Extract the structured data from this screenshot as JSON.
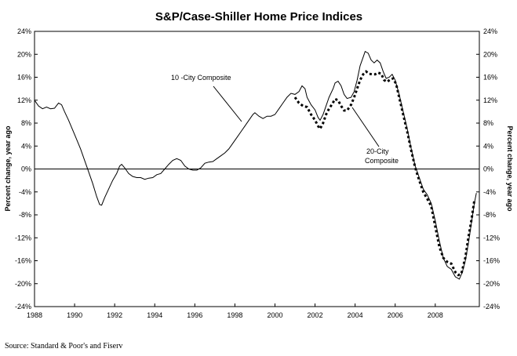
{
  "source": "Source: Standard & Poor's and Fiserv",
  "chart_data": {
    "type": "line",
    "title": "S&P/Case-Shiller Home Price Indices",
    "ylabel_left": "Percent change, year ago",
    "ylabel_right": "Percent change, year ago",
    "xlabel": "",
    "ylim": [
      -24,
      24
    ],
    "xlim": [
      1988,
      2010.2
    ],
    "y_ticks": [
      "24%",
      "20%",
      "16%",
      "12%",
      "8%",
      "4%",
      "0%",
      "-4%",
      "-8%",
      "-12%",
      "-16%",
      "-20%",
      "-24%"
    ],
    "y_tick_values": [
      24,
      20,
      16,
      12,
      8,
      4,
      0,
      -4,
      -8,
      -12,
      -16,
      -20,
      -24
    ],
    "x_ticks": [
      "1988",
      "1990",
      "1992",
      "1994",
      "1996",
      "1998",
      "2000",
      "2002",
      "2004",
      "2006",
      "2008"
    ],
    "x_tick_values": [
      1988,
      1990,
      1992,
      1994,
      1996,
      1998,
      2000,
      2002,
      2004,
      2006,
      2008
    ],
    "zero_line": true,
    "grid": false,
    "annotations": [
      {
        "text": "10 -City Composite",
        "series": 0
      },
      {
        "text": "20-City",
        "series": 1
      },
      {
        "text": "Composite",
        "series": 1
      }
    ],
    "series": [
      {
        "name": "10 -City Composite",
        "style": "solid",
        "color": "#000000",
        "points": [
          [
            1988.0,
            12.0
          ],
          [
            1988.2,
            11.0
          ],
          [
            1988.4,
            10.5
          ],
          [
            1988.6,
            10.8
          ],
          [
            1988.8,
            10.5
          ],
          [
            1989.0,
            10.6
          ],
          [
            1989.2,
            11.5
          ],
          [
            1989.35,
            11.2
          ],
          [
            1989.5,
            10.0
          ],
          [
            1989.7,
            8.5
          ],
          [
            1990.0,
            6.0
          ],
          [
            1990.3,
            3.5
          ],
          [
            1990.6,
            0.5
          ],
          [
            1990.9,
            -2.5
          ],
          [
            1991.1,
            -4.8
          ],
          [
            1991.25,
            -6.2
          ],
          [
            1991.35,
            -6.3
          ],
          [
            1991.5,
            -5.0
          ],
          [
            1991.7,
            -3.5
          ],
          [
            1991.9,
            -2.0
          ],
          [
            1992.1,
            -0.8
          ],
          [
            1992.25,
            0.5
          ],
          [
            1992.35,
            0.8
          ],
          [
            1992.5,
            0.2
          ],
          [
            1992.7,
            -0.8
          ],
          [
            1992.9,
            -1.3
          ],
          [
            1993.1,
            -1.5
          ],
          [
            1993.3,
            -1.5
          ],
          [
            1993.5,
            -1.8
          ],
          [
            1993.7,
            -1.6
          ],
          [
            1993.9,
            -1.5
          ],
          [
            1994.1,
            -1.0
          ],
          [
            1994.3,
            -0.8
          ],
          [
            1994.5,
            0.0
          ],
          [
            1994.7,
            0.8
          ],
          [
            1994.9,
            1.5
          ],
          [
            1995.1,
            1.8
          ],
          [
            1995.3,
            1.5
          ],
          [
            1995.5,
            0.5
          ],
          [
            1995.7,
            0.0
          ],
          [
            1995.9,
            -0.2
          ],
          [
            1996.1,
            -0.2
          ],
          [
            1996.3,
            0.2
          ],
          [
            1996.5,
            1.0
          ],
          [
            1996.7,
            1.2
          ],
          [
            1996.9,
            1.3
          ],
          [
            1997.1,
            1.8
          ],
          [
            1997.3,
            2.3
          ],
          [
            1997.5,
            2.8
          ],
          [
            1997.7,
            3.5
          ],
          [
            1997.9,
            4.5
          ],
          [
            1998.1,
            5.5
          ],
          [
            1998.3,
            6.5
          ],
          [
            1998.5,
            7.5
          ],
          [
            1998.7,
            8.5
          ],
          [
            1998.9,
            9.5
          ],
          [
            1999.0,
            9.8
          ],
          [
            1999.2,
            9.2
          ],
          [
            1999.4,
            8.8
          ],
          [
            1999.6,
            9.2
          ],
          [
            1999.8,
            9.2
          ],
          [
            2000.0,
            9.5
          ],
          [
            2000.2,
            10.5
          ],
          [
            2000.4,
            11.5
          ],
          [
            2000.6,
            12.5
          ],
          [
            2000.8,
            13.2
          ],
          [
            2001.0,
            13.0
          ],
          [
            2001.2,
            13.5
          ],
          [
            2001.35,
            14.5
          ],
          [
            2001.5,
            14.0
          ],
          [
            2001.6,
            12.5
          ],
          [
            2001.8,
            11.2
          ],
          [
            2002.0,
            10.3
          ],
          [
            2002.15,
            9.0
          ],
          [
            2002.25,
            8.5
          ],
          [
            2002.4,
            9.5
          ],
          [
            2002.55,
            11.0
          ],
          [
            2002.7,
            12.5
          ],
          [
            2002.9,
            14.0
          ],
          [
            2003.0,
            15.0
          ],
          [
            2003.15,
            15.3
          ],
          [
            2003.3,
            14.5
          ],
          [
            2003.45,
            13.0
          ],
          [
            2003.6,
            12.3
          ],
          [
            2003.8,
            12.5
          ],
          [
            2003.95,
            13.5
          ],
          [
            2004.1,
            15.5
          ],
          [
            2004.25,
            18.0
          ],
          [
            2004.4,
            19.5
          ],
          [
            2004.5,
            20.5
          ],
          [
            2004.65,
            20.2
          ],
          [
            2004.8,
            19.0
          ],
          [
            2004.95,
            18.5
          ],
          [
            2005.1,
            19.0
          ],
          [
            2005.25,
            18.5
          ],
          [
            2005.4,
            17.0
          ],
          [
            2005.55,
            15.8
          ],
          [
            2005.7,
            16.0
          ],
          [
            2005.85,
            16.5
          ],
          [
            2006.0,
            15.5
          ],
          [
            2006.2,
            13.0
          ],
          [
            2006.4,
            10.0
          ],
          [
            2006.6,
            7.0
          ],
          [
            2006.8,
            3.5
          ],
          [
            2007.0,
            0.5
          ],
          [
            2007.2,
            -1.5
          ],
          [
            2007.4,
            -3.5
          ],
          [
            2007.6,
            -4.5
          ],
          [
            2007.8,
            -6.0
          ],
          [
            2008.0,
            -9.0
          ],
          [
            2008.2,
            -12.5
          ],
          [
            2008.4,
            -15.5
          ],
          [
            2008.6,
            -17.0
          ],
          [
            2008.8,
            -17.5
          ],
          [
            2009.0,
            -18.8
          ],
          [
            2009.2,
            -19.2
          ],
          [
            2009.35,
            -18.0
          ],
          [
            2009.5,
            -16.0
          ],
          [
            2009.65,
            -13.0
          ],
          [
            2009.8,
            -9.5
          ],
          [
            2009.95,
            -6.0
          ],
          [
            2010.05,
            -4.2
          ]
        ]
      },
      {
        "name": "20-City Composite",
        "style": "dashed",
        "color": "#000000",
        "points": [
          [
            2001.0,
            12.5
          ],
          [
            2001.2,
            11.5
          ],
          [
            2001.4,
            11.0
          ],
          [
            2001.6,
            10.8
          ],
          [
            2001.8,
            9.5
          ],
          [
            2002.0,
            8.5
          ],
          [
            2002.15,
            7.5
          ],
          [
            2002.25,
            7.0
          ],
          [
            2002.4,
            8.0
          ],
          [
            2002.55,
            9.5
          ],
          [
            2002.7,
            10.5
          ],
          [
            2002.85,
            11.3
          ],
          [
            2003.0,
            12.2
          ],
          [
            2003.15,
            12.0
          ],
          [
            2003.3,
            11.0
          ],
          [
            2003.45,
            10.2
          ],
          [
            2003.6,
            10.2
          ],
          [
            2003.8,
            11.2
          ],
          [
            2003.95,
            12.5
          ],
          [
            2004.1,
            14.0
          ],
          [
            2004.25,
            15.5
          ],
          [
            2004.4,
            16.5
          ],
          [
            2004.55,
            17.0
          ],
          [
            2004.7,
            16.6
          ],
          [
            2004.85,
            16.5
          ],
          [
            2005.0,
            16.5
          ],
          [
            2005.15,
            16.8
          ],
          [
            2005.3,
            16.6
          ],
          [
            2005.45,
            15.5
          ],
          [
            2005.6,
            15.2
          ],
          [
            2005.75,
            15.6
          ],
          [
            2005.9,
            15.8
          ],
          [
            2006.05,
            14.8
          ],
          [
            2006.2,
            12.5
          ],
          [
            2006.4,
            9.5
          ],
          [
            2006.6,
            6.5
          ],
          [
            2006.8,
            3.2
          ],
          [
            2007.0,
            0.2
          ],
          [
            2007.2,
            -2.0
          ],
          [
            2007.4,
            -4.0
          ],
          [
            2007.6,
            -5.2
          ],
          [
            2007.8,
            -6.5
          ],
          [
            2008.0,
            -10.0
          ],
          [
            2008.2,
            -13.5
          ],
          [
            2008.4,
            -15.5
          ],
          [
            2008.6,
            -16.2
          ],
          [
            2008.8,
            -16.5
          ],
          [
            2009.0,
            -18.0
          ],
          [
            2009.15,
            -18.5
          ],
          [
            2009.3,
            -18.3
          ],
          [
            2009.5,
            -15.5
          ],
          [
            2009.65,
            -12.0
          ],
          [
            2009.8,
            -9.0
          ],
          [
            2009.95,
            -5.5
          ]
        ]
      }
    ]
  }
}
